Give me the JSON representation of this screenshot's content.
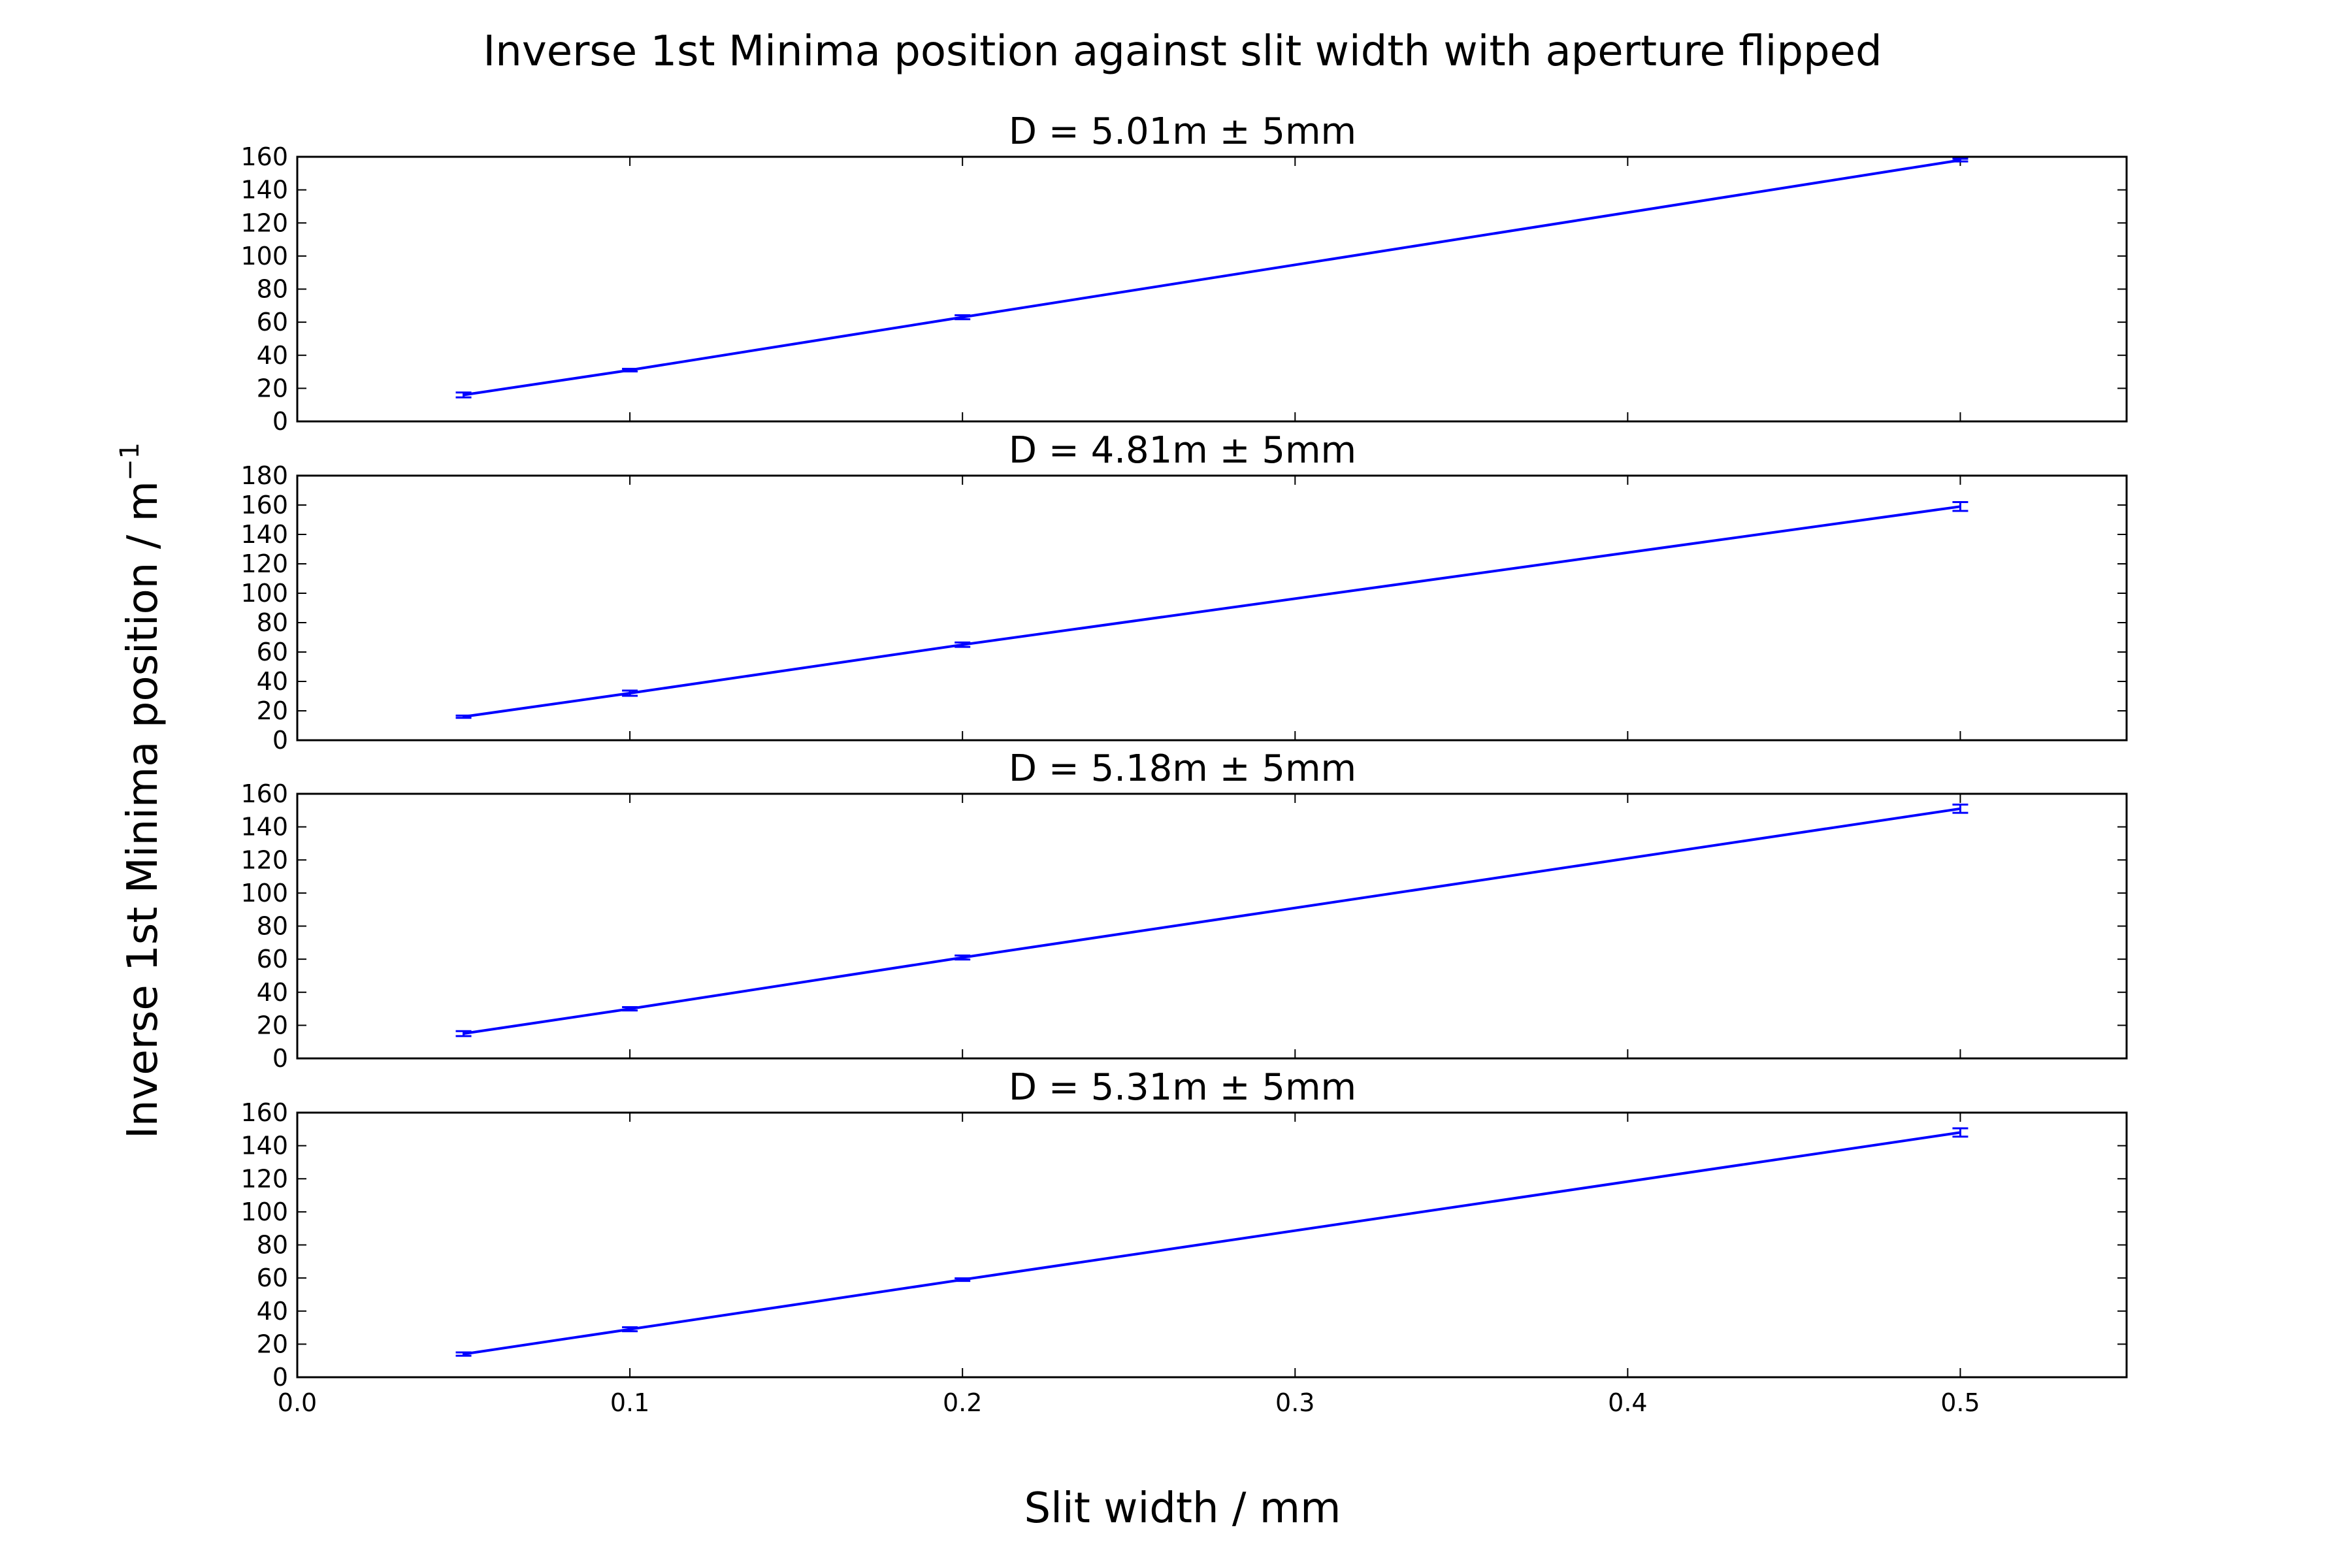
{
  "figure": {
    "title": "Inverse 1st Minima position against slit width with aperture flipped",
    "xlabel": "Slit width / mm",
    "ylabel_main": "Inverse 1st Minima position / m",
    "ylabel_sup": "−1"
  },
  "chart_data": [
    {
      "type": "line",
      "title": "D = 5.01m ± 5mm",
      "series_color": "#0000ff",
      "x": [
        0.05,
        0.1,
        0.2,
        0.5
      ],
      "y": [
        16,
        31,
        63,
        158
      ],
      "yerr": [
        1.5,
        0.8,
        1.2,
        0.8
      ],
      "xlim": [
        0.0,
        0.55
      ],
      "ylim": [
        0,
        160
      ],
      "yticks": [
        0,
        20,
        40,
        60,
        80,
        100,
        120,
        140,
        160
      ],
      "xticks": [
        0.0,
        0.1,
        0.2,
        0.3,
        0.4,
        0.5
      ],
      "xtick_labels": []
    },
    {
      "type": "line",
      "title": "D = 4.81m ± 5mm",
      "series_color": "#0000ff",
      "x": [
        0.05,
        0.1,
        0.2,
        0.5
      ],
      "y": [
        16,
        32,
        65,
        159
      ],
      "yerr": [
        0.8,
        1.8,
        1.5,
        3
      ],
      "xlim": [
        0.0,
        0.55
      ],
      "ylim": [
        0,
        180
      ],
      "yticks": [
        0,
        20,
        40,
        60,
        80,
        100,
        120,
        140,
        160,
        180
      ],
      "xticks": [
        0.0,
        0.1,
        0.2,
        0.3,
        0.4,
        0.5
      ],
      "xtick_labels": []
    },
    {
      "type": "line",
      "title": "D = 5.18m ± 5mm",
      "series_color": "#0000ff",
      "x": [
        0.05,
        0.1,
        0.2,
        0.5
      ],
      "y": [
        15,
        30,
        61,
        151
      ],
      "yerr": [
        1.5,
        1,
        1.2,
        2.5
      ],
      "xlim": [
        0.0,
        0.55
      ],
      "ylim": [
        0,
        160
      ],
      "yticks": [
        0,
        20,
        40,
        60,
        80,
        100,
        120,
        140,
        160
      ],
      "xticks": [
        0.0,
        0.1,
        0.2,
        0.3,
        0.4,
        0.5
      ],
      "xtick_labels": []
    },
    {
      "type": "line",
      "title": "D = 5.31m ± 5mm",
      "series_color": "#0000ff",
      "x": [
        0.05,
        0.1,
        0.2,
        0.5
      ],
      "y": [
        14,
        29,
        59,
        148
      ],
      "yerr": [
        1,
        1.2,
        0.8,
        2.5
      ],
      "xlim": [
        0.0,
        0.55
      ],
      "ylim": [
        0,
        160
      ],
      "yticks": [
        0,
        20,
        40,
        60,
        80,
        100,
        120,
        140,
        160
      ],
      "xticks": [
        0.0,
        0.1,
        0.2,
        0.3,
        0.4,
        0.5
      ],
      "xtick_labels": [
        "0.0",
        "0.1",
        "0.2",
        "0.3",
        "0.4",
        "0.5"
      ]
    }
  ]
}
